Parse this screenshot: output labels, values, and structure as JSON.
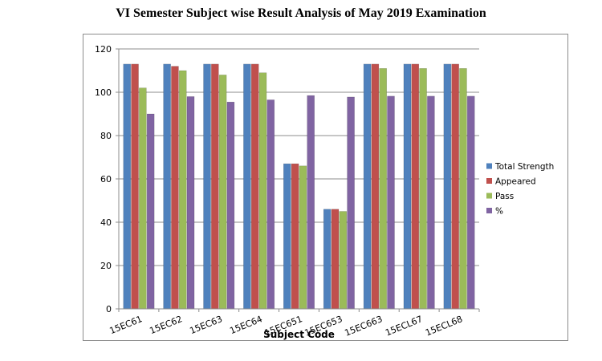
{
  "page_title": "VI Semester Subject wise Result Analysis of May 2019 Examination",
  "chart_data": {
    "type": "bar",
    "title": "VI Semester Subject wise Result Analysis of May 2019 Examination",
    "xlabel": "Subject Code",
    "ylabel": "",
    "ylim": [
      0,
      120
    ],
    "yticks": [
      0,
      20,
      40,
      60,
      80,
      100,
      120
    ],
    "grid": true,
    "legend_position": "right",
    "categories": [
      "15EC61",
      "15EC62",
      "15EC63",
      "15EC64",
      "15EC651",
      "15EC653",
      "15EC663",
      "15ECL67",
      "15ECL68"
    ],
    "series": [
      {
        "name": "Total Strength",
        "color": "#4f81bd",
        "values": [
          113,
          113,
          113,
          113,
          67,
          46,
          113,
          113,
          113
        ]
      },
      {
        "name": "Appeared",
        "color": "#c0504d",
        "values": [
          113,
          112,
          113,
          113,
          67,
          46,
          113,
          113,
          113
        ]
      },
      {
        "name": "Pass",
        "color": "#9bbb59",
        "values": [
          102,
          110,
          108,
          109,
          66,
          45,
          111,
          111,
          111
        ]
      },
      {
        "name": "%",
        "color": "#8064a2",
        "values": [
          90,
          98,
          95.5,
          96.5,
          98.5,
          97.8,
          98.2,
          98.2,
          98.2
        ]
      }
    ]
  }
}
